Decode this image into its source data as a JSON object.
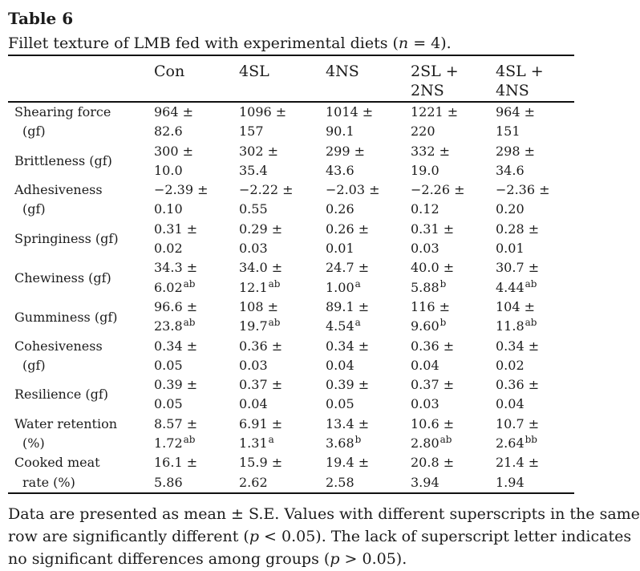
{
  "title": "Table 6",
  "caption": {
    "segments": [
      {
        "t": "Fillet texture of LMB fed with experimental diets ("
      },
      {
        "t": "n",
        "i": true
      },
      {
        "t": " = 4)."
      }
    ]
  },
  "table": {
    "col_headers": [
      {
        "id": "con",
        "lines": [
          "Con"
        ]
      },
      {
        "id": "4sl",
        "lines": [
          "4SL"
        ]
      },
      {
        "id": "4ns",
        "lines": [
          "4NS"
        ]
      },
      {
        "id": "2sl-2ns",
        "lines": [
          "2SL +",
          "2NS"
        ]
      },
      {
        "id": "4sl-4ns",
        "lines": [
          "4SL +",
          "4NS"
        ]
      }
    ],
    "rows": [
      {
        "label_lines": [
          "Shearing force",
          "(gf)"
        ],
        "cells": [
          {
            "line1": "964 ±",
            "line2": "82.6",
            "sup": ""
          },
          {
            "line1": "1096 ±",
            "line2": "157",
            "sup": ""
          },
          {
            "line1": "1014 ±",
            "line2": "90.1",
            "sup": ""
          },
          {
            "line1": "1221 ±",
            "line2": "220",
            "sup": ""
          },
          {
            "line1": "964 ±",
            "line2": "151",
            "sup": ""
          }
        ]
      },
      {
        "label_lines": [
          "Brittleness (gf)"
        ],
        "cells": [
          {
            "line1": "300 ±",
            "line2": "10.0",
            "sup": ""
          },
          {
            "line1": "302 ±",
            "line2": "35.4",
            "sup": ""
          },
          {
            "line1": "299 ±",
            "line2": "43.6",
            "sup": ""
          },
          {
            "line1": "332 ±",
            "line2": "19.0",
            "sup": ""
          },
          {
            "line1": "298 ±",
            "line2": "34.6",
            "sup": ""
          }
        ]
      },
      {
        "label_lines": [
          "Adhesiveness",
          "(gf)"
        ],
        "cells": [
          {
            "line1": "−2.39 ±",
            "line2": "0.10",
            "sup": ""
          },
          {
            "line1": "−2.22 ±",
            "line2": "0.55",
            "sup": ""
          },
          {
            "line1": "−2.03 ±",
            "line2": "0.26",
            "sup": ""
          },
          {
            "line1": "−2.26 ±",
            "line2": "0.12",
            "sup": ""
          },
          {
            "line1": "−2.36 ±",
            "line2": "0.20",
            "sup": ""
          }
        ]
      },
      {
        "label_lines": [
          "Springiness (gf)"
        ],
        "cells": [
          {
            "line1": "0.31 ±",
            "line2": "0.02",
            "sup": ""
          },
          {
            "line1": "0.29 ±",
            "line2": "0.03",
            "sup": ""
          },
          {
            "line1": "0.26 ±",
            "line2": "0.01",
            "sup": ""
          },
          {
            "line1": "0.31 ±",
            "line2": "0.03",
            "sup": ""
          },
          {
            "line1": "0.28 ±",
            "line2": "0.01",
            "sup": ""
          }
        ]
      },
      {
        "label_lines": [
          "Chewiness (gf)"
        ],
        "cells": [
          {
            "line1": "34.3 ±",
            "line2": "6.02",
            "sup": "ab"
          },
          {
            "line1": "34.0 ±",
            "line2": "12.1",
            "sup": "ab"
          },
          {
            "line1": "24.7 ±",
            "line2": "1.00",
            "sup": "a"
          },
          {
            "line1": "40.0 ±",
            "line2": "5.88",
            "sup": "b"
          },
          {
            "line1": "30.7 ±",
            "line2": "4.44",
            "sup": "ab"
          }
        ]
      },
      {
        "label_lines": [
          "Gumminess (gf)"
        ],
        "cells": [
          {
            "line1": "96.6 ±",
            "line2": "23.8",
            "sup": "ab"
          },
          {
            "line1": "108 ±",
            "line2": "19.7",
            "sup": "ab"
          },
          {
            "line1": "89.1 ±",
            "line2": "4.54",
            "sup": "a"
          },
          {
            "line1": "116 ±",
            "line2": "9.60",
            "sup": "b"
          },
          {
            "line1": "104 ±",
            "line2": "11.8",
            "sup": "ab"
          }
        ]
      },
      {
        "label_lines": [
          "Cohesiveness",
          "(gf)"
        ],
        "cells": [
          {
            "line1": "0.34 ±",
            "line2": "0.05",
            "sup": ""
          },
          {
            "line1": "0.36 ±",
            "line2": "0.03",
            "sup": ""
          },
          {
            "line1": "0.34 ±",
            "line2": "0.04",
            "sup": ""
          },
          {
            "line1": "0.36 ±",
            "line2": "0.04",
            "sup": ""
          },
          {
            "line1": "0.34 ±",
            "line2": "0.02",
            "sup": ""
          }
        ]
      },
      {
        "label_lines": [
          "Resilience (gf)"
        ],
        "cells": [
          {
            "line1": "0.39 ±",
            "line2": "0.05",
            "sup": ""
          },
          {
            "line1": "0.37 ±",
            "line2": "0.04",
            "sup": ""
          },
          {
            "line1": "0.39 ±",
            "line2": "0.05",
            "sup": ""
          },
          {
            "line1": "0.37 ±",
            "line2": "0.03",
            "sup": ""
          },
          {
            "line1": "0.36 ±",
            "line2": "0.04",
            "sup": ""
          }
        ]
      },
      {
        "label_lines": [
          "Water retention",
          "(%)"
        ],
        "cells": [
          {
            "line1": "8.57 ±",
            "line2": "1.72",
            "sup": "ab"
          },
          {
            "line1": "6.91 ±",
            "line2": "1.31",
            "sup": "a"
          },
          {
            "line1": "13.4 ±",
            "line2": "3.68",
            "sup": "b"
          },
          {
            "line1": "10.6 ±",
            "line2": "2.80",
            "sup": "ab"
          },
          {
            "line1": "10.7 ±",
            "line2": "2.64",
            "sup": "bb"
          }
        ]
      },
      {
        "label_lines": [
          "Cooked meat",
          "rate (%)"
        ],
        "cells": [
          {
            "line1": "16.1 ±",
            "line2": "5.86",
            "sup": ""
          },
          {
            "line1": "15.9 ±",
            "line2": "2.62",
            "sup": ""
          },
          {
            "line1": "19.4 ±",
            "line2": "2.58",
            "sup": ""
          },
          {
            "line1": "20.8 ±",
            "line2": "3.94",
            "sup": ""
          },
          {
            "line1": "21.4 ±",
            "line2": "1.94",
            "sup": ""
          }
        ]
      }
    ]
  },
  "footnote": {
    "lines": [
      [
        {
          "t": "Data are presented as mean ± S.E. Values with different superscripts in the same"
        }
      ],
      [
        {
          "t": "row are significantly different ("
        },
        {
          "t": "p",
          "i": true
        },
        {
          "t": " < 0.05). The lack of superscript letter indicates"
        }
      ],
      [
        {
          "t": "no significant differences among groups ("
        },
        {
          "t": "p",
          "i": true
        },
        {
          "t": " > 0.05)."
        }
      ]
    ]
  },
  "colors": {
    "background": "#ffffff",
    "text": "#1c1c1c",
    "rule": "#111111"
  }
}
